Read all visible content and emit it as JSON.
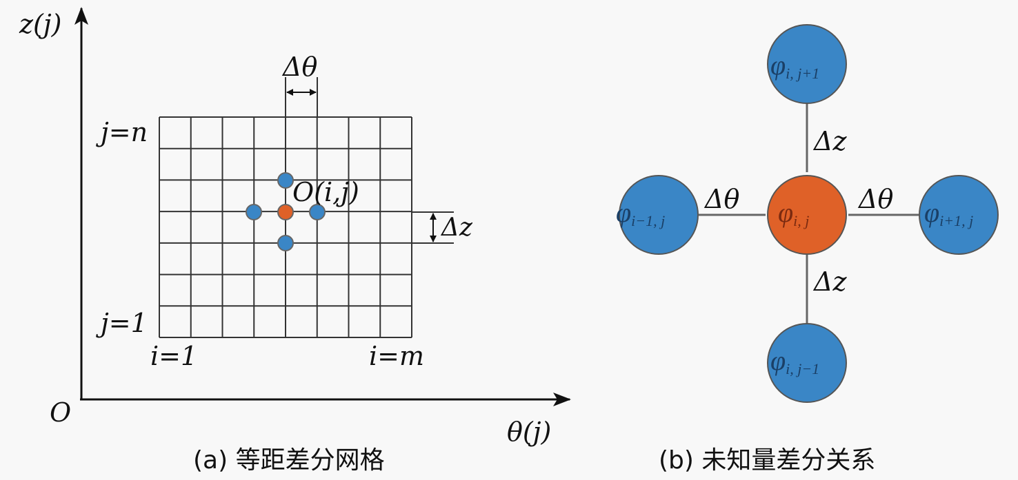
{
  "panel_a": {
    "caption": "(a) 等距差分网格",
    "axis_y_label": "z(j)",
    "axis_x_label": "θ(j)",
    "origin_label": "O",
    "row_top_label": "j=n",
    "row_bottom_label": "j=1",
    "col_left_label": "i=1",
    "col_right_label": "i=m",
    "point_label": "O(i,j)",
    "dtheta_label": "Δθ",
    "dz_label": "Δz"
  },
  "panel_b": {
    "caption": "(b) 未知量差分关系",
    "center_node": {
      "symbol": "φ",
      "sub": "i, j"
    },
    "top_node": {
      "symbol": "φ",
      "sub": "i, j+1"
    },
    "bottom_node": {
      "symbol": "φ",
      "sub": "i, j−1"
    },
    "left_node": {
      "symbol": "φ",
      "sub": "i−1, j"
    },
    "right_node": {
      "symbol": "φ",
      "sub": "i+1, j"
    },
    "edge_top_label": "Δz",
    "edge_bottom_label": "Δz",
    "edge_left_label": "Δθ",
    "edge_right_label": "Δθ"
  },
  "colors": {
    "neighbor": "#3a86c6",
    "center": "#df6128",
    "line": "#333333"
  }
}
